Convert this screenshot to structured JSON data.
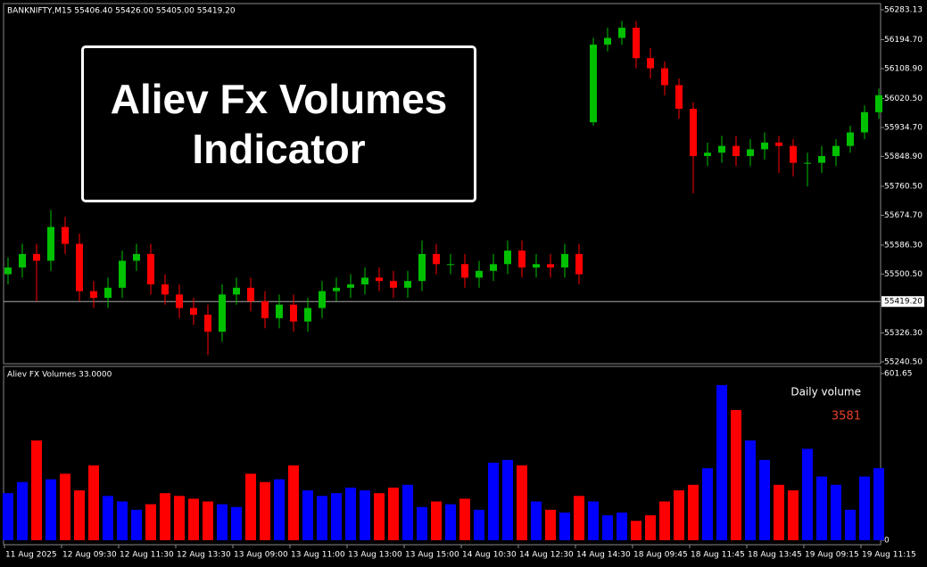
{
  "banner": "Aliev Fx Volumes Indicator",
  "chart_data": [
    {
      "type": "candlestick",
      "title": "BANKNIFTY,M15  55406.40 55426.00 55405.00 55419.20",
      "up_color": "#00c000",
      "down_color": "#ff0000",
      "categories": [
        "11 Aug 2025",
        null,
        null,
        null,
        "12 Aug 09:30",
        null,
        null,
        null,
        "12 Aug 11:30",
        null,
        null,
        null,
        "12 Aug 13:30",
        null,
        null,
        null,
        "13 Aug 09:00",
        null,
        null,
        null,
        "13 Aug 11:00",
        null,
        null,
        null,
        "13 Aug 13:00",
        null,
        null,
        null,
        "13 Aug 15:00",
        null,
        null,
        null,
        "14 Aug 10:30",
        null,
        null,
        null,
        "14 Aug 12:30",
        null,
        null,
        null,
        "14 Aug 14:30",
        null,
        null,
        null,
        "18 Aug 09:45",
        null,
        null,
        null,
        "18 Aug 11:45",
        null,
        null,
        null,
        "18 Aug 13:45",
        null,
        null,
        null,
        "19 Aug 09:15",
        null,
        null,
        null,
        "19 Aug 11:15",
        null
      ],
      "open": [
        55500,
        55520,
        55560,
        55540,
        55640,
        55590,
        55450,
        55430,
        55460,
        55540,
        55560,
        55470,
        55440,
        55400,
        55380,
        55330,
        55440,
        55460,
        55420,
        55370,
        55410,
        55360,
        55400,
        55450,
        55460,
        55470,
        55490,
        55480,
        55460,
        55480,
        55560,
        55530,
        55530,
        55490,
        55510,
        55530,
        55570,
        55520,
        55530,
        55520,
        55560,
        55950,
        56180,
        56200,
        56230,
        56140,
        56110,
        56060,
        55990,
        55850,
        55860,
        55880,
        55850,
        55870,
        55890,
        55880,
        55830,
        55830,
        55850,
        55880,
        55920,
        55980
      ],
      "high": [
        55550,
        55590,
        55590,
        55690,
        55670,
        55620,
        55480,
        55490,
        55570,
        55590,
        55590,
        55500,
        55470,
        55430,
        55410,
        55470,
        55490,
        55490,
        55450,
        55440,
        55440,
        55430,
        55480,
        55490,
        55500,
        55520,
        55520,
        55510,
        55510,
        55600,
        55590,
        55560,
        55560,
        55540,
        55560,
        55600,
        55600,
        55560,
        55560,
        55590,
        55590,
        56200,
        56230,
        56250,
        56250,
        56170,
        56130,
        56080,
        56010,
        55890,
        55910,
        55910,
        55900,
        55920,
        55910,
        55900,
        55860,
        55880,
        55900,
        55940,
        56000,
        56050
      ],
      "low": [
        55470,
        55490,
        55420,
        55510,
        55560,
        55420,
        55400,
        55400,
        55430,
        55510,
        55440,
        55410,
        55370,
        55350,
        55260,
        55300,
        55410,
        55390,
        55340,
        55340,
        55330,
        55330,
        55370,
        55420,
        55430,
        55440,
        55450,
        55430,
        55430,
        55450,
        55500,
        55500,
        55460,
        55460,
        55480,
        55500,
        55490,
        55490,
        55490,
        55490,
        55470,
        55940,
        56160,
        56180,
        56110,
        56080,
        56030,
        55960,
        55740,
        55820,
        55830,
        55820,
        55820,
        55840,
        55800,
        55790,
        55760,
        55800,
        55820,
        55860,
        55900,
        55960
      ],
      "close": [
        55520,
        55560,
        55540,
        55640,
        55590,
        55450,
        55430,
        55460,
        55540,
        55560,
        55470,
        55440,
        55400,
        55380,
        55330,
        55440,
        55460,
        55420,
        55370,
        55410,
        55360,
        55400,
        55450,
        55460,
        55470,
        55490,
        55480,
        55460,
        55480,
        55560,
        55530,
        55530,
        55490,
        55510,
        55530,
        55570,
        55520,
        55530,
        55520,
        55560,
        55500,
        56180,
        56200,
        56230,
        56140,
        56110,
        56060,
        55990,
        55850,
        55860,
        55880,
        55850,
        55870,
        55890,
        55880,
        55830,
        55830,
        55850,
        55880,
        55920,
        55980,
        56030
      ],
      "ylim": [
        55235,
        56299
      ],
      "yticks": [
        56283.13,
        {
          "value": 56194.7,
          "label": "56194.70"
        },
        {
          "value": 56108.9,
          "label": "56108.90"
        },
        {
          "value": 56020.5,
          "label": "56020.50"
        },
        {
          "value": 55934.7,
          "label": "55934.70"
        },
        {
          "value": 55848.9,
          "label": "55848.90"
        },
        {
          "value": 55760.5,
          "label": "55760.50"
        },
        {
          "value": 55674.7,
          "label": "55674.70"
        },
        {
          "value": 55586.3,
          "label": "55586.30"
        },
        {
          "value": 55500.5,
          "label": "55500.50"
        },
        {
          "value": 55326.3,
          "label": "55326.30"
        },
        {
          "value": 55240.5,
          "label": "55240.50"
        }
      ],
      "last_price": {
        "value": 55419.2,
        "label": "55419.20"
      }
    },
    {
      "type": "bar",
      "title": "Aliev FX Volumes 33.0000",
      "daily_volume_label": "Daily volume",
      "daily_volume": "3581",
      "up_color": "#0000ff",
      "down_color": "#ff0000",
      "values": [
        170,
        210,
        360,
        220,
        240,
        180,
        270,
        160,
        140,
        110,
        130,
        170,
        160,
        150,
        140,
        130,
        120,
        240,
        210,
        220,
        270,
        180,
        160,
        170,
        190,
        180,
        170,
        190,
        200,
        120,
        140,
        130,
        150,
        110,
        280,
        290,
        270,
        140,
        110,
        100,
        160,
        140,
        90,
        100,
        70,
        90,
        140,
        180,
        200,
        260,
        560,
        470,
        360,
        290,
        200,
        180,
        330,
        230,
        200,
        110,
        230,
        260
      ],
      "ylim": [
        0,
        601.65
      ],
      "yticks": [
        0,
        601.65
      ]
    }
  ]
}
